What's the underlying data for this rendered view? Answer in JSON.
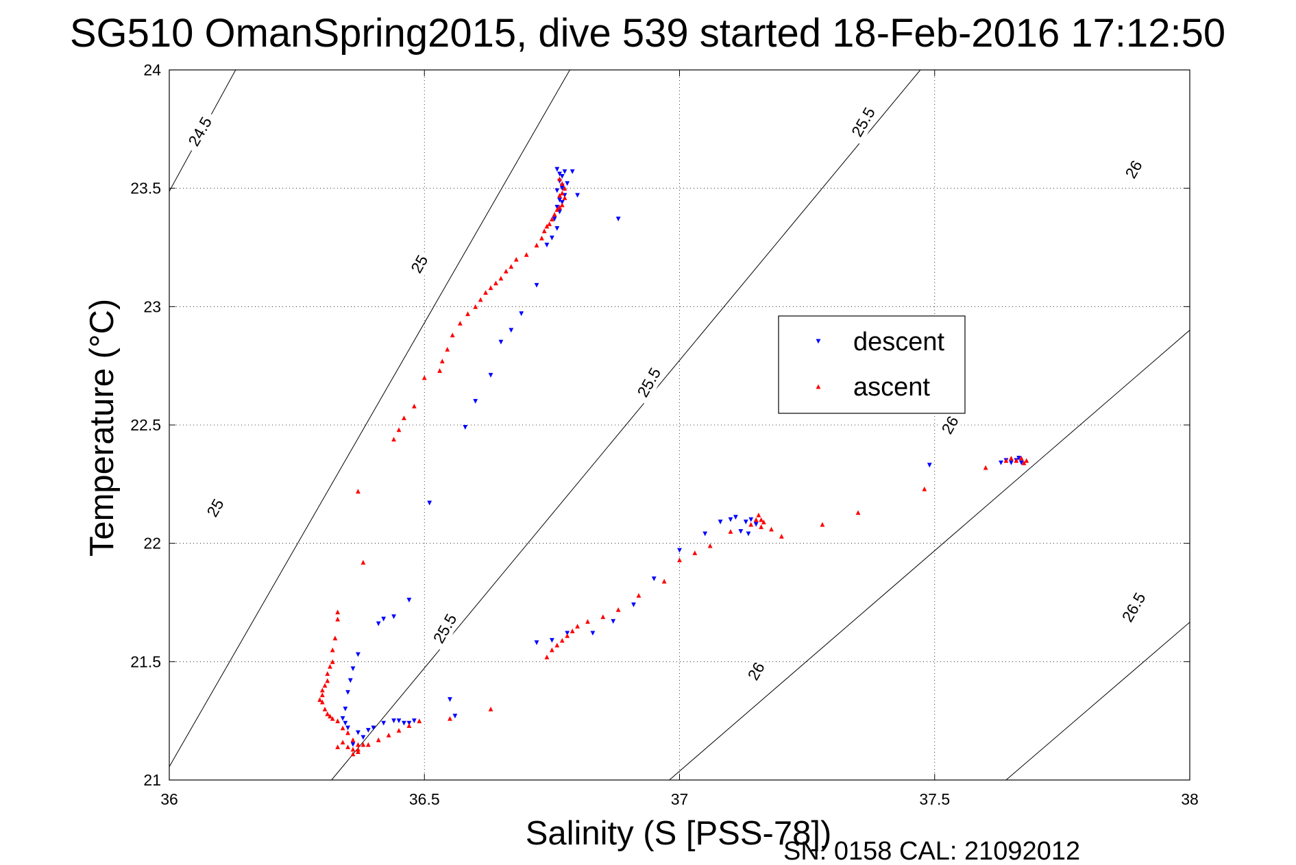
{
  "chart_data": {
    "type": "scatter",
    "title": "SG510 OmanSpring2015, dive 539 started 18-Feb-2016 17:12:50",
    "xlabel": "Salinity (S [PSS-78])",
    "ylabel": "Temperature (°C)",
    "footer": "SN: 0158  CAL: 21092012",
    "xlim": [
      36,
      38
    ],
    "ylim": [
      21,
      24
    ],
    "xticks": [
      36,
      36.5,
      37,
      37.5,
      38
    ],
    "xtick_labels": [
      "36",
      "36.5",
      "37",
      "37.5",
      "38"
    ],
    "yticks": [
      21,
      21.5,
      22,
      22.5,
      23,
      23.5,
      24
    ],
    "ytick_labels": [
      "21",
      "21.5",
      "22",
      "22.5",
      "23",
      "23.5",
      "24"
    ],
    "grid": true,
    "legend_position": "upper-right-center",
    "density_contours": [
      {
        "level": 24.5,
        "x_at_ymin": 35.37,
        "x_at_ymax": 36.13
      },
      {
        "level": 25,
        "x_at_ymin": 35.985,
        "x_at_ymax": 36.785
      },
      {
        "level": 25.5,
        "x_at_ymin": 36.318,
        "x_at_ymax": 37.472
      },
      {
        "level": 26,
        "x_at_ymin": 36.98,
        "x_at_ymax": 38.59
      },
      {
        "level": 26.5,
        "x_at_ymin": 37.64,
        "x_at_ymax": 39.26
      }
    ],
    "contour_labels": [
      {
        "text": "24.5",
        "x": 36.06,
        "y": 23.74
      },
      {
        "text": "25",
        "x": 36.49,
        "y": 23.18
      },
      {
        "text": "25",
        "x": 36.09,
        "y": 22.15
      },
      {
        "text": "25.5",
        "x": 36.94,
        "y": 22.68
      },
      {
        "text": "25.5",
        "x": 37.36,
        "y": 23.78
      },
      {
        "text": "25.5",
        "x": 36.54,
        "y": 21.64
      },
      {
        "text": "26",
        "x": 37.53,
        "y": 22.5
      },
      {
        "text": "26",
        "x": 37.89,
        "y": 23.58
      },
      {
        "text": "26",
        "x": 37.15,
        "y": 21.46
      },
      {
        "text": "26.5",
        "x": 37.89,
        "y": 21.73
      }
    ],
    "series": [
      {
        "name": "descent",
        "color": "#0000ff",
        "marker": "triangle-down",
        "x": [
          36.76,
          36.765,
          36.77,
          36.775,
          36.765,
          36.77,
          36.76,
          36.775,
          36.765,
          36.77,
          36.76,
          36.765,
          36.755,
          36.76,
          36.77,
          36.78,
          36.79,
          36.8,
          36.88,
          36.75,
          36.74,
          36.72,
          36.69,
          36.67,
          36.65,
          36.63,
          36.6,
          36.58,
          36.51,
          36.47,
          36.44,
          36.42,
          36.41,
          36.37,
          36.36,
          36.355,
          36.35,
          36.345,
          36.34,
          36.345,
          36.35,
          36.37,
          36.38,
          36.36,
          36.39,
          36.4,
          36.42,
          36.44,
          36.45,
          36.46,
          36.47,
          36.48,
          36.55,
          36.56,
          36.72,
          36.75,
          36.78,
          36.83,
          36.87,
          36.91,
          36.95,
          37.0,
          37.05,
          37.08,
          37.1,
          37.11,
          37.12,
          37.13,
          37.135,
          37.14,
          37.15,
          37.49,
          37.63,
          37.64,
          37.65,
          37.66,
          37.665,
          37.67
        ],
        "y": [
          23.58,
          23.56,
          23.55,
          23.57,
          23.53,
          23.51,
          23.49,
          23.47,
          23.45,
          23.44,
          23.42,
          23.4,
          23.37,
          23.33,
          23.5,
          23.52,
          23.57,
          23.47,
          23.37,
          23.29,
          23.26,
          23.09,
          22.97,
          22.9,
          22.85,
          22.71,
          22.6,
          22.49,
          22.17,
          21.76,
          21.69,
          21.68,
          21.66,
          21.53,
          21.47,
          21.42,
          21.37,
          21.3,
          21.26,
          21.24,
          21.22,
          21.2,
          21.18,
          21.15,
          21.21,
          21.22,
          21.24,
          21.25,
          21.25,
          21.24,
          21.24,
          21.25,
          21.34,
          21.27,
          21.58,
          21.59,
          21.62,
          21.62,
          21.67,
          21.74,
          21.85,
          21.97,
          22.04,
          22.09,
          22.1,
          22.11,
          22.05,
          22.09,
          22.04,
          22.1,
          22.08,
          22.33,
          22.34,
          22.35,
          22.34,
          22.35,
          22.36,
          22.34
        ]
      },
      {
        "name": "ascent",
        "color": "#ff0000",
        "marker": "triangle-up",
        "x": [
          36.765,
          36.77,
          36.775,
          36.77,
          36.765,
          36.775,
          36.77,
          36.765,
          36.76,
          36.755,
          36.75,
          36.745,
          36.74,
          36.735,
          36.73,
          36.72,
          36.7,
          36.68,
          36.67,
          36.66,
          36.65,
          36.64,
          36.63,
          36.62,
          36.61,
          36.6,
          36.585,
          36.57,
          36.555,
          36.545,
          36.535,
          36.53,
          36.5,
          36.48,
          36.46,
          36.45,
          36.44,
          36.37,
          36.38,
          36.33,
          36.33,
          36.325,
          36.32,
          36.32,
          36.315,
          36.31,
          36.31,
          36.305,
          36.3,
          36.3,
          36.295,
          36.3,
          36.305,
          36.31,
          36.315,
          36.32,
          36.33,
          36.34,
          36.35,
          36.36,
          36.37,
          36.39,
          36.41,
          36.43,
          36.45,
          36.47,
          36.49,
          36.37,
          36.38,
          36.33,
          36.34,
          36.35,
          36.36,
          36.37,
          36.36,
          36.55,
          36.63,
          36.74,
          36.75,
          36.76,
          36.77,
          36.78,
          36.79,
          36.8,
          36.82,
          36.85,
          36.88,
          36.92,
          36.97,
          37.0,
          37.03,
          37.06,
          37.1,
          37.14,
          37.15,
          37.155,
          37.16,
          37.165,
          37.16,
          37.18,
          37.2,
          37.28,
          37.35,
          37.48,
          37.6,
          37.64,
          37.65,
          37.66,
          37.67,
          37.675,
          37.68
        ],
        "y": [
          23.54,
          23.52,
          23.5,
          23.48,
          23.47,
          23.46,
          23.43,
          23.42,
          23.41,
          23.39,
          23.37,
          23.35,
          23.34,
          23.32,
          23.29,
          23.26,
          23.22,
          23.2,
          23.17,
          23.15,
          23.12,
          23.1,
          23.08,
          23.06,
          23.03,
          23.0,
          22.97,
          22.93,
          22.88,
          22.82,
          22.77,
          22.73,
          22.7,
          22.58,
          22.53,
          22.48,
          22.44,
          22.22,
          21.92,
          21.71,
          21.68,
          21.6,
          21.55,
          21.5,
          21.48,
          21.45,
          21.42,
          21.4,
          21.38,
          21.36,
          21.34,
          21.33,
          21.3,
          21.28,
          21.27,
          21.26,
          21.25,
          21.22,
          21.2,
          21.17,
          21.15,
          21.15,
          21.17,
          21.19,
          21.21,
          21.23,
          21.25,
          21.13,
          21.15,
          21.14,
          21.16,
          21.14,
          21.13,
          21.12,
          21.11,
          21.26,
          21.3,
          21.52,
          21.55,
          21.57,
          21.59,
          21.61,
          21.63,
          21.65,
          21.67,
          21.69,
          21.72,
          21.78,
          21.84,
          21.93,
          21.96,
          21.99,
          22.05,
          22.08,
          22.1,
          22.12,
          22.1,
          22.09,
          22.07,
          22.06,
          22.03,
          22.08,
          22.13,
          22.23,
          22.32,
          22.35,
          22.36,
          22.35,
          22.36,
          22.34,
          22.35
        ]
      }
    ],
    "legend": {
      "entries": [
        "descent",
        "ascent"
      ]
    }
  }
}
